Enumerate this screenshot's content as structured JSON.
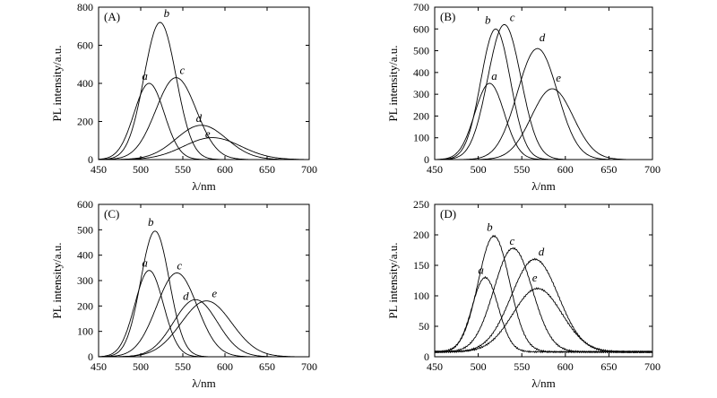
{
  "chart_data": [
    {
      "type": "line",
      "panel_label": "(A)",
      "xlabel": "λ/nm",
      "ylabel": "PL intensity/a.u.",
      "xlim": [
        450,
        700
      ],
      "ylim": [
        0,
        800
      ],
      "xticks": [
        450,
        500,
        550,
        600,
        650,
        700
      ],
      "yticks": [
        0,
        200,
        400,
        600,
        800
      ],
      "grid": false,
      "series": [
        {
          "name": "a",
          "peak_x": 510,
          "peak_y": 400,
          "width": 18
        },
        {
          "name": "b",
          "peak_x": 523,
          "peak_y": 720,
          "width": 19
        },
        {
          "name": "c",
          "peak_x": 542,
          "peak_y": 430,
          "width": 24
        },
        {
          "name": "d",
          "peak_x": 572,
          "peak_y": 180,
          "width": 30
        },
        {
          "name": "e",
          "peak_x": 585,
          "peak_y": 115,
          "width": 34
        }
      ]
    },
    {
      "type": "line",
      "panel_label": "(B)",
      "xlabel": "λ/nm",
      "ylabel": "PL intensity/a.u.",
      "xlim": [
        450,
        700
      ],
      "ylim": [
        0,
        700
      ],
      "xticks": [
        450,
        500,
        550,
        600,
        650,
        700
      ],
      "yticks": [
        0,
        100,
        200,
        300,
        400,
        500,
        600,
        700
      ],
      "grid": false,
      "series": [
        {
          "name": "a",
          "peak_x": 513,
          "peak_y": 350,
          "width": 17
        },
        {
          "name": "b",
          "peak_x": 520,
          "peak_y": 600,
          "width": 17
        },
        {
          "name": "c",
          "peak_x": 530,
          "peak_y": 620,
          "width": 19
        },
        {
          "name": "d",
          "peak_x": 568,
          "peak_y": 510,
          "width": 23
        },
        {
          "name": "e",
          "peak_x": 585,
          "peak_y": 325,
          "width": 24
        }
      ]
    },
    {
      "type": "line",
      "panel_label": "(C)",
      "xlabel": "λ/nm",
      "ylabel": "PL intensity/a.u.",
      "xlim": [
        450,
        700
      ],
      "ylim": [
        0,
        600
      ],
      "xticks": [
        450,
        500,
        550,
        600,
        650,
        700
      ],
      "yticks": [
        0,
        100,
        200,
        300,
        400,
        500,
        600
      ],
      "grid": false,
      "series": [
        {
          "name": "a",
          "peak_x": 510,
          "peak_y": 340,
          "width": 17
        },
        {
          "name": "b",
          "peak_x": 517,
          "peak_y": 495,
          "width": 17
        },
        {
          "name": "c",
          "peak_x": 543,
          "peak_y": 330,
          "width": 24
        },
        {
          "name": "d",
          "peak_x": 565,
          "peak_y": 225,
          "width": 26
        },
        {
          "name": "e",
          "peak_x": 578,
          "peak_y": 220,
          "width": 30
        }
      ]
    },
    {
      "type": "line",
      "panel_label": "(D)",
      "xlabel": "λ/nm",
      "ylabel": "PL intensity/a.u.",
      "xlim": [
        450,
        700
      ],
      "ylim": [
        0,
        250
      ],
      "xticks": [
        450,
        500,
        550,
        600,
        650,
        700
      ],
      "yticks": [
        0,
        50,
        100,
        150,
        200,
        250
      ],
      "grid": false,
      "baseline": 8,
      "series": [
        {
          "name": "a",
          "peak_x": 508,
          "peak_y": 130,
          "width": 15
        },
        {
          "name": "b",
          "peak_x": 518,
          "peak_y": 198,
          "width": 18
        },
        {
          "name": "c",
          "peak_x": 540,
          "peak_y": 178,
          "width": 22
        },
        {
          "name": "d",
          "peak_x": 565,
          "peak_y": 160,
          "width": 27
        },
        {
          "name": "e",
          "peak_x": 568,
          "peak_y": 112,
          "width": 28
        }
      ]
    }
  ]
}
